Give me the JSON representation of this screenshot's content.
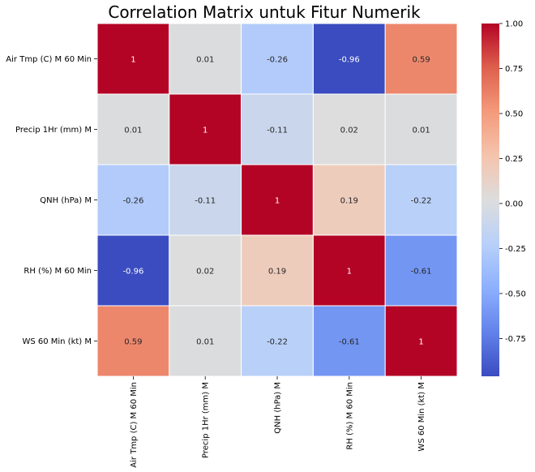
{
  "chart_data": {
    "type": "heatmap",
    "title": "Correlation Matrix untuk Fitur Numerik",
    "xlabel": "",
    "ylabel": "",
    "x_categories": [
      "Air Tmp (C) M 60 Min",
      "Precip 1Hr (mm) M",
      "QNH (hPa) M",
      "RH (%) M 60 Min",
      "WS 60 Min (kt) M"
    ],
    "y_categories": [
      "Air Tmp (C) M 60 Min",
      "Precip 1Hr (mm) M",
      "QNH (hPa) M",
      "RH (%) M 60 Min",
      "WS 60 Min (kt) M"
    ],
    "values": [
      [
        1,
        0.01,
        -0.26,
        -0.96,
        0.59
      ],
      [
        0.01,
        1,
        -0.11,
        0.02,
        0.01
      ],
      [
        -0.26,
        -0.11,
        1,
        0.19,
        -0.22
      ],
      [
        -0.96,
        0.02,
        0.19,
        1,
        -0.61
      ],
      [
        0.59,
        0.01,
        -0.22,
        -0.61,
        1
      ]
    ],
    "cell_labels": [
      [
        "1",
        "0.01",
        "-0.26",
        "-0.96",
        "0.59"
      ],
      [
        "0.01",
        "1",
        "-0.11",
        "0.02",
        "0.01"
      ],
      [
        "-0.26",
        "-0.11",
        "1",
        "0.19",
        "-0.22"
      ],
      [
        "-0.96",
        "0.02",
        "0.19",
        "1",
        "-0.61"
      ],
      [
        "0.59",
        "0.01",
        "-0.22",
        "-0.61",
        "1"
      ]
    ],
    "colormap": "coolwarm",
    "color_range": [
      -0.96,
      1
    ],
    "colorbar_ticks": [
      "1.00",
      "0.75",
      "0.50",
      "0.25",
      "0.00",
      "-0.25",
      "-0.50",
      "-0.75"
    ],
    "colorbar_tick_values": [
      1,
      0.75,
      0.5,
      0.25,
      0,
      -0.25,
      -0.5,
      -0.75
    ],
    "grid": false,
    "legend": "colorbar-right"
  }
}
